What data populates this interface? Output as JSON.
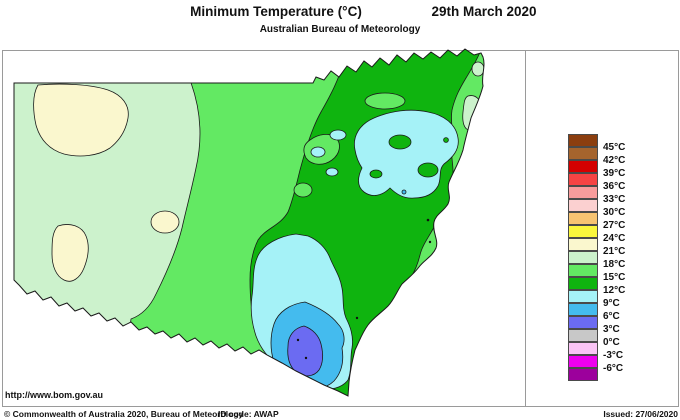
{
  "header": {
    "title": "Minimum Temperature (°C)",
    "date": "29th March 2020",
    "subtitle": "Australian Bureau of Meteorology"
  },
  "legend": {
    "labels": [
      "45°C",
      "42°C",
      "39°C",
      "36°C",
      "33°C",
      "30°C",
      "27°C",
      "24°C",
      "21°C",
      "18°C",
      "15°C",
      "12°C",
      "9°C",
      "6°C",
      "3°C",
      "0°C",
      "-3°C",
      "-6°C"
    ],
    "colors": [
      "#8B3E0F",
      "#A5642D",
      "#D40000",
      "#F54444",
      "#F89C9C",
      "#FBD0D0",
      "#F7C472",
      "#FAF73C",
      "#FAF7CE",
      "#CCF2CC",
      "#63E963",
      "#0FB40F",
      "#A5F2F7",
      "#44BBEE",
      "#6B6BF2",
      "#C8C8C8",
      "#FAC4F5",
      "#EE00EE",
      "#9C009C"
    ]
  },
  "map": {
    "region": "New South Wales",
    "outline_color": "#1a1a1a",
    "frame_color": "#9a9a9a"
  },
  "footer": {
    "url": "http://www.bom.gov.au",
    "copyright": "© Commonwealth of Australia 2020, Bureau of Meteorology",
    "id_code": "ID code: AWAP",
    "issued": "Issued: 27/06/2020"
  }
}
